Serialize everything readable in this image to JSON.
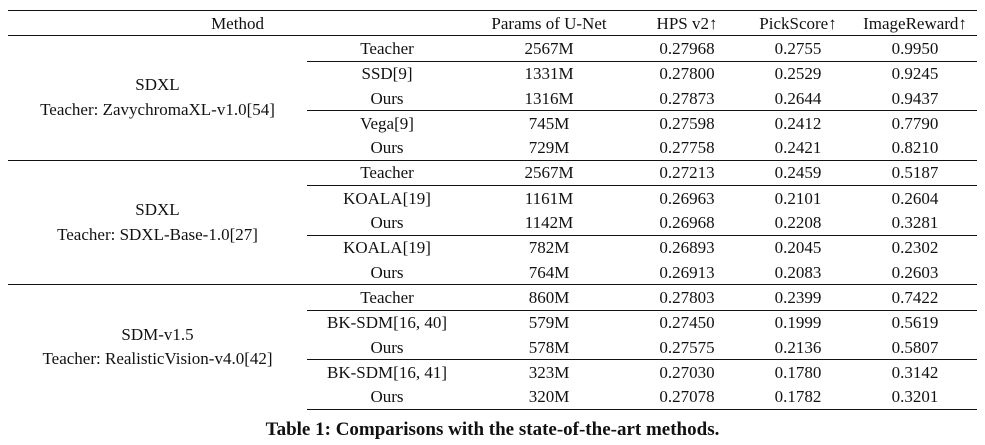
{
  "header": {
    "method": "Method",
    "params": "Params of U-Net",
    "hps": "HPS v2↑",
    "pick": "PickScore↑",
    "reward": "ImageReward↑"
  },
  "groups": [
    {
      "name": "SDXL",
      "teacher": "Teacher: ZavychromaXL-v1.0[54]",
      "rows": [
        {
          "method": "Teacher",
          "params": "2567M",
          "hps": "0.27968",
          "pick": "0.2755",
          "reward": "0.9950",
          "bold": [
            false,
            false,
            false
          ]
        },
        {
          "method": "SSD[9]",
          "params": "1331M",
          "hps": "0.27800",
          "pick": "0.2529",
          "reward": "0.9245",
          "bold": [
            false,
            false,
            false
          ]
        },
        {
          "method": "Ours",
          "params": "1316M",
          "hps": "0.27873",
          "pick": "0.2644",
          "reward": "0.9437",
          "bold": [
            true,
            true,
            true
          ]
        },
        {
          "method": "Vega[9]",
          "params": "745M",
          "hps": "0.27598",
          "pick": "0.2412",
          "reward": "0.7790",
          "bold": [
            false,
            false,
            false
          ]
        },
        {
          "method": "Ours",
          "params": "729M",
          "hps": "0.27758",
          "pick": "0.2421",
          "reward": "0.8210",
          "bold": [
            true,
            true,
            true
          ]
        }
      ]
    },
    {
      "name": "SDXL",
      "teacher": "Teacher: SDXL-Base-1.0[27]",
      "rows": [
        {
          "method": "Teacher",
          "params": "2567M",
          "hps": "0.27213",
          "pick": "0.2459",
          "reward": "0.5187",
          "bold": [
            false,
            false,
            false
          ]
        },
        {
          "method": "KOALA[19]",
          "params": "1161M",
          "hps": "0.26963",
          "pick": "0.2101",
          "reward": "0.2604",
          "bold": [
            true,
            false,
            false
          ]
        },
        {
          "method": "Ours",
          "params": "1142M",
          "hps": "0.26968",
          "pick": "0.2208",
          "reward": "0.3281",
          "bold": [
            true,
            true,
            true
          ]
        },
        {
          "method": "KOALA[19]",
          "params": "782M",
          "hps": "0.26893",
          "pick": "0.2045",
          "reward": "0.2302",
          "bold": [
            false,
            false,
            false
          ]
        },
        {
          "method": "Ours",
          "params": "764M",
          "hps": "0.26913",
          "pick": "0.2083",
          "reward": "0.2603",
          "bold": [
            true,
            true,
            true
          ]
        }
      ]
    },
    {
      "name": "SDM-v1.5",
      "teacher": "Teacher: RealisticVision-v4.0[42]",
      "rows": [
        {
          "method": "Teacher",
          "params": "860M",
          "hps": "0.27803",
          "pick": "0.2399",
          "reward": "0.7422",
          "bold": [
            false,
            false,
            false
          ]
        },
        {
          "method": "BK-SDM[16, 40]",
          "params": "579M",
          "hps": "0.27450",
          "pick": "0.1999",
          "reward": "0.5619",
          "bold": [
            false,
            false,
            false
          ]
        },
        {
          "method": "Ours",
          "params": "578M",
          "hps": "0.27575",
          "pick": "0.2136",
          "reward": "0.5807",
          "bold": [
            true,
            true,
            true
          ]
        },
        {
          "method": "BK-SDM[16, 41]",
          "params": "323M",
          "hps": "0.27030",
          "pick": "0.1780",
          "reward": "0.3142",
          "bold": [
            false,
            false,
            false
          ]
        },
        {
          "method": "Ours",
          "params": "320M",
          "hps": "0.27078",
          "pick": "0.1782",
          "reward": "0.3201",
          "bold": [
            true,
            true,
            true
          ]
        }
      ]
    }
  ],
  "caption": "Table 1: Comparisons with the state-of-the-art methods."
}
